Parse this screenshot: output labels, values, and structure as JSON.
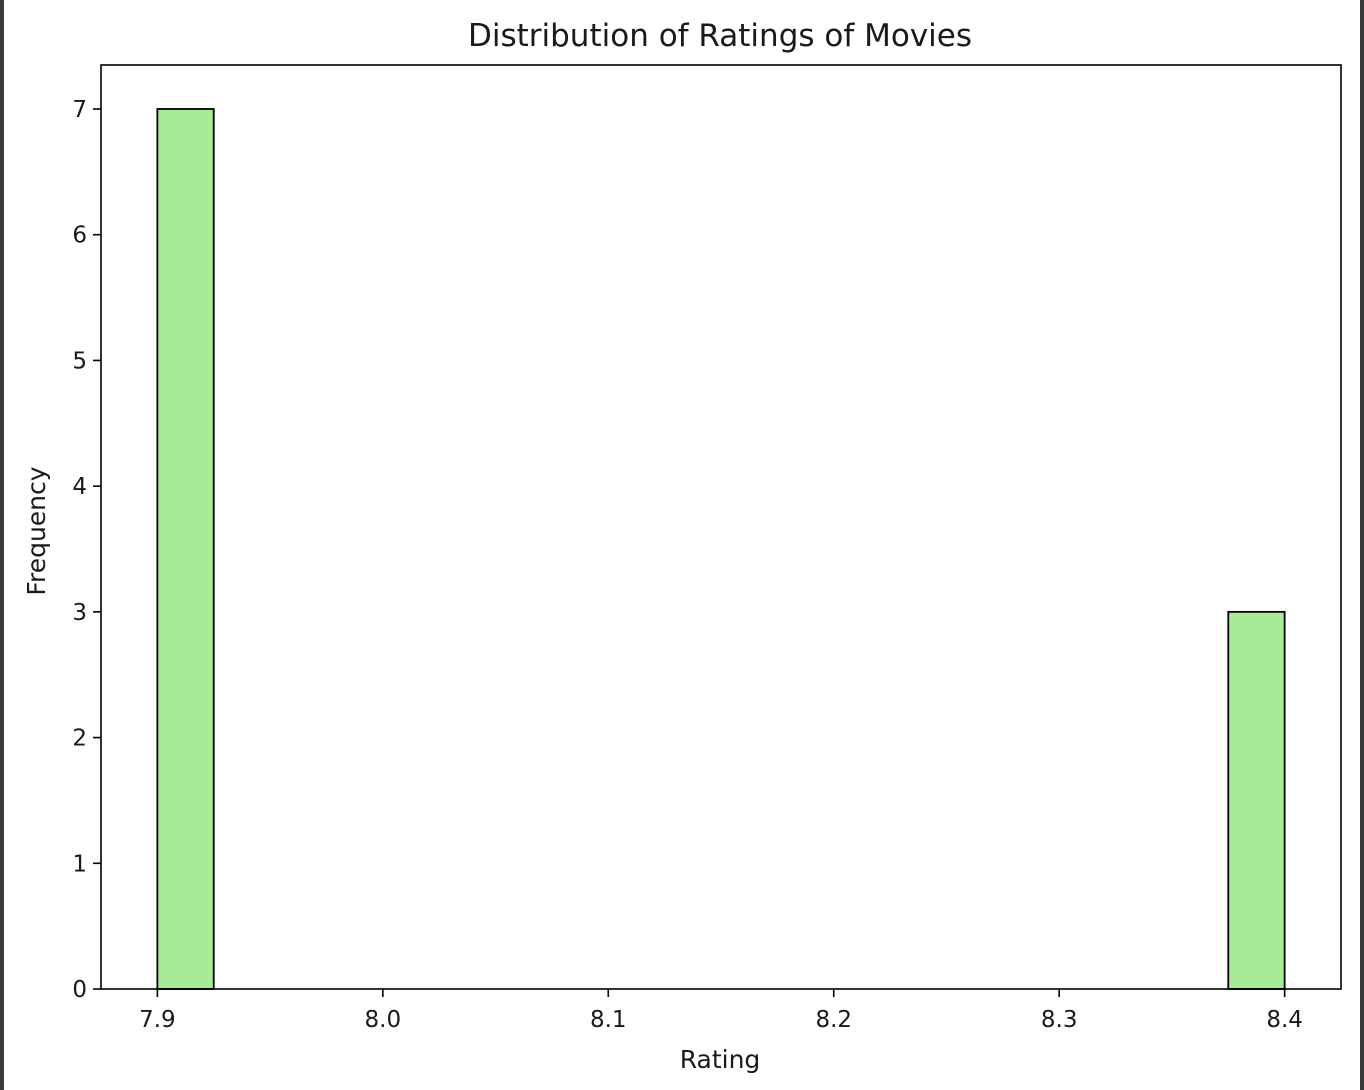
{
  "chart_data": {
    "type": "bar",
    "title": "Distribution of Ratings of Movies",
    "xlabel": "Rating",
    "ylabel": "Frequency",
    "xlim": [
      7.875,
      8.425
    ],
    "ylim": [
      0,
      7.35
    ],
    "x_ticks": [
      "7.9",
      "8.0",
      "8.1",
      "8.2",
      "8.3",
      "8.4"
    ],
    "y_ticks": [
      "0",
      "1",
      "2",
      "3",
      "4",
      "5",
      "6",
      "7"
    ],
    "bins": [
      {
        "start": 7.9,
        "end": 7.925,
        "count": 7
      },
      {
        "start": 8.375,
        "end": 8.4,
        "count": 3
      }
    ],
    "bar_color": "#a6eb96",
    "edge_color": "#000000",
    "grid": false
  }
}
